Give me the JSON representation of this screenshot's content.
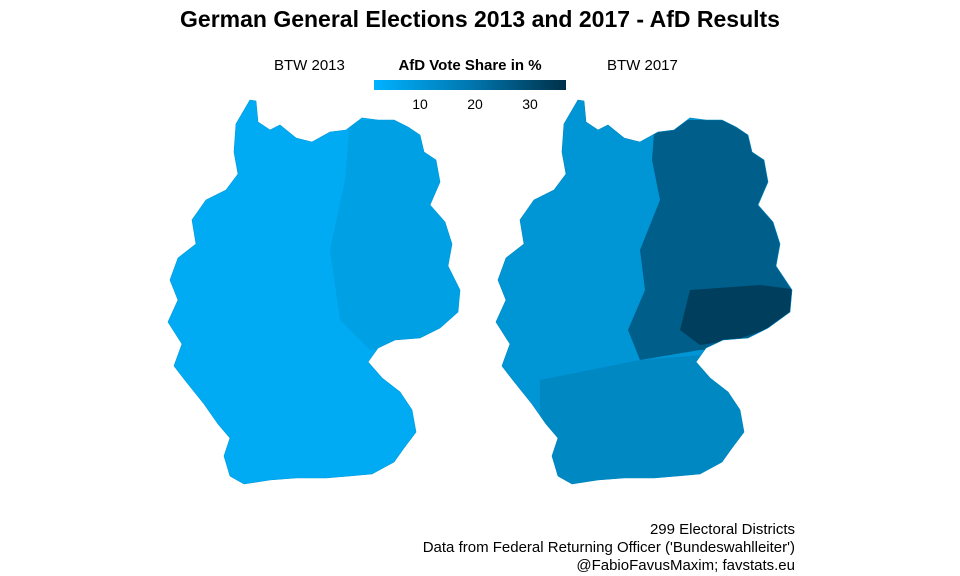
{
  "title": "German General Elections 2013 and 2017 - AfD Results",
  "facets": [
    "BTW 2013",
    "BTW 2017"
  ],
  "legend": {
    "title": "AfD Vote Share in %",
    "ticks": [
      "10",
      "20",
      "30"
    ],
    "low_color": "#00B2FF",
    "high_color": "#003048"
  },
  "caption": {
    "line1": "299 Electoral Districts",
    "line2": "Data from Federal Returning Officer ('Bundeswahlleiter')",
    "line3": "@FabioFavusMaxim; favstats.eu"
  },
  "map_colors": {
    "west_2013": "#00ABF4",
    "east_2013": "#009FE2",
    "west_2017": "#0096D6",
    "south_2017": "#0088C3",
    "east_2017": "#005E8A",
    "saxony_2017": "#003E5E"
  }
}
